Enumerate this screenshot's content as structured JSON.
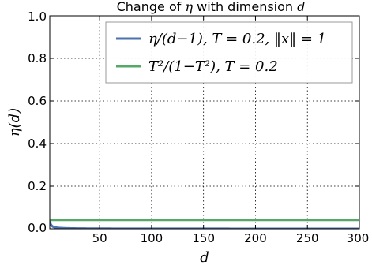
{
  "chart_data": {
    "type": "line",
    "title": "Change of η with dimension d",
    "title_parts": {
      "prefix": "Change of ",
      "eta": "η",
      "middle": " with dimension ",
      "d": "d"
    },
    "xlabel": "d",
    "ylabel": "η(d)",
    "xlim": [
      2,
      300
    ],
    "ylim": [
      0.0,
      1.0
    ],
    "xticks": [
      50,
      100,
      150,
      200,
      250,
      300
    ],
    "yticks": [
      0.0,
      0.2,
      0.4,
      0.6,
      0.8,
      1.0
    ],
    "xtick_labels": [
      "50",
      "100",
      "150",
      "200",
      "250",
      "300"
    ],
    "ytick_labels": [
      "0.0",
      "0.2",
      "0.4",
      "0.6",
      "0.8",
      "1.0"
    ],
    "grid": true,
    "legend_position": "upper-right",
    "series": [
      {
        "name": "η/(d−1), T = 0.2, ‖x‖ = 1",
        "color": "#4c72b0",
        "formula": "eta/(d-1)",
        "eta": 0.0417,
        "x": [
          2.04,
          2.1,
          2.2,
          2.5,
          3,
          4,
          5,
          6,
          8,
          10,
          15,
          20,
          30,
          40,
          50,
          60,
          80,
          100,
          125,
          150,
          175,
          200,
          225,
          250,
          275,
          300
        ],
        "y": [
          0.04,
          0.0397,
          0.0383,
          0.0305,
          0.0228,
          0.0173,
          0.0144,
          0.0131,
          0.0124,
          0.0118,
          0.0112,
          0.0108,
          0.0104,
          0.0098,
          0.0092,
          0.0088,
          0.0083,
          0.0078,
          0.0071,
          0.0066,
          0.0062,
          0.0059,
          0.0056,
          0.0054,
          0.0052,
          0.005
        ]
      },
      {
        "name": "T²/(1−T²), T = 0.2",
        "color": "#55a868",
        "x": [
          2,
          300
        ],
        "y": [
          0.0417,
          0.0417
        ]
      }
    ]
  },
  "legend": {
    "entries": [
      {
        "label": "η/(d−1), T = 0.2, ‖x‖ = 1",
        "color": "#4c72b0"
      },
      {
        "label": "T²/(1−T²), T = 0.2",
        "color": "#55a868"
      }
    ]
  }
}
